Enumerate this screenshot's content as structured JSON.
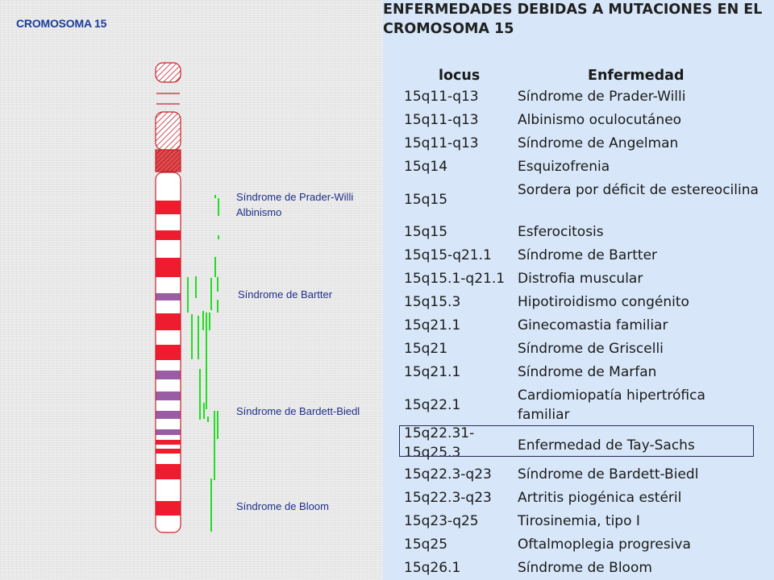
{
  "diagram": {
    "title": "CROMOSOMA 15",
    "labels": [
      {
        "text": "Síndrome de Prader-Willi",
        "left": 293,
        "top": 235
      },
      {
        "text": "Albinismo",
        "left": 293,
        "top": 254
      },
      {
        "text": "Síndrome de Bartter",
        "left": 295,
        "top": 356
      },
      {
        "text": "Síndrome de Bardett-Biedl",
        "left": 293,
        "top": 501
      },
      {
        "text": "Síndrome de Bloom",
        "left": 293,
        "top": 619
      }
    ]
  },
  "table": {
    "title_line1": "ENFERMEDADES DEBIDAS A MUTACIONES EN EL",
    "title_line2": "CROMOSOMA 15",
    "headers": {
      "locus": "locus",
      "disease": "Enfermedad"
    },
    "rows": [
      {
        "locus": "15q11-q13",
        "disease": "Síndrome de Prader-Willi"
      },
      {
        "locus": "15q11-q13",
        "disease": "Albinismo oculocutáneo"
      },
      {
        "locus": "15q11-q13",
        "disease": "Síndrome de Angelman"
      },
      {
        "locus": "15q14",
        "disease": "Esquizofrenia"
      },
      {
        "locus": "15q15",
        "disease": "Sordera por déficit de estereocilina"
      },
      {
        "locus": "15q15",
        "disease": "Esferocitosis"
      },
      {
        "locus": "15q15-q21.1",
        "disease": "Síndrome de Bartter"
      },
      {
        "locus": "15q15.1-q21.1",
        "disease": "Distrofia muscular"
      },
      {
        "locus": "15q15.3",
        "disease": "Hipotiroidismo congénito"
      },
      {
        "locus": "15q21.1",
        "disease": "Ginecomastia familiar"
      },
      {
        "locus": "15q21",
        "disease": "Síndrome de Griscelli"
      },
      {
        "locus": "15q21.1",
        "disease": "Síndrome de Marfan"
      },
      {
        "locus": "15q22.1",
        "disease": "Cardiomiopatía hipertrófica familiar"
      },
      {
        "locus": "15q22.31-15q25.3",
        "disease": "Enfermedad de Tay-Sachs",
        "highlighted": true
      },
      {
        "locus": "15q22.3-q23",
        "disease": "Síndrome de Bardett-Biedl"
      },
      {
        "locus": "15q22.3-q23",
        "disease": "Artritis piogénica estéril"
      },
      {
        "locus": "15q23-q25",
        "disease": "Tirosinemia, tipo I"
      },
      {
        "locus": "15q25",
        "disease": "Oftalmoplegia progresiva"
      },
      {
        "locus": "15q26.1",
        "disease": "Síndrome de Bloom"
      }
    ]
  },
  "colors": {
    "band_red": "#ee1c2e",
    "band_purple": "#9b5ca6",
    "locus_mark_green": "#22dd22",
    "label_blue": "#1f2f8a"
  }
}
